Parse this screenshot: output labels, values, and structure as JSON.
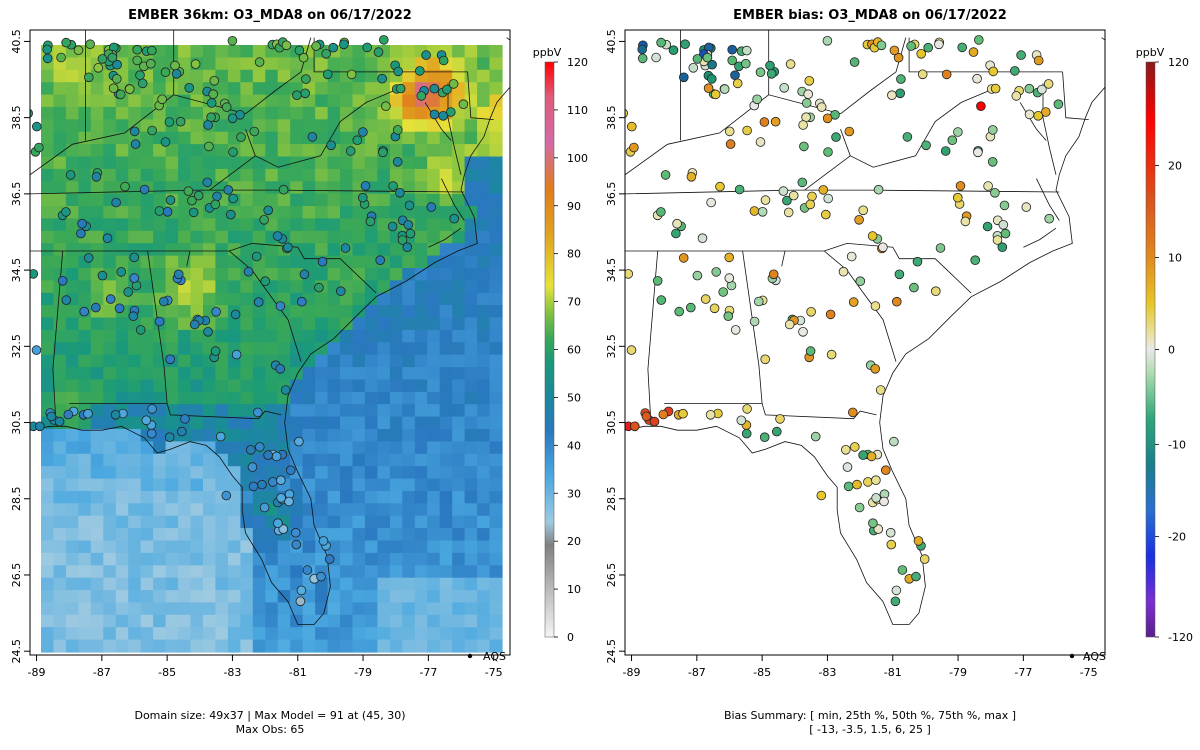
{
  "left_panel": {
    "title": "EMBER 36km: O3_MDA8 on 06/17/2022",
    "footer_line1": "Domain size: 49x37 | Max Model = 91 at (45, 30)",
    "footer_line2": "Max Obs: 65",
    "legend_label": "AQS",
    "colorbar": {
      "unit": "ppbV",
      "ticks": [
        "0",
        "10",
        "20",
        "30",
        "40",
        "50",
        "60",
        "70",
        "80",
        "90",
        "100",
        "110",
        "120"
      ],
      "range": [
        0,
        120
      ],
      "stops": [
        "#f5f5f5",
        "#bdbdbd",
        "#7f7f7f",
        "#9ecae1",
        "#41a6e6",
        "#2a7fc0",
        "#1a9a82",
        "#3aa857",
        "#7fc241",
        "#e8e03c",
        "#e0a21f",
        "#e27d1e",
        "#d96aa0",
        "#c86aaa",
        "#ff0000"
      ]
    }
  },
  "right_panel": {
    "title": "EMBER bias: O3_MDA8 on 06/17/2022",
    "footer_line1": "Bias Summary: [ min, 25th %, 50th %, 75th %, max ]",
    "footer_line2": "[ -13,   -3.5,   1.5,   6,   25 ]",
    "legend_label": "AQS",
    "colorbar": {
      "unit": "ppbV",
      "ticks": [
        "120",
        "20",
        "10",
        "0",
        "-10",
        "-20",
        "-120"
      ],
      "range": [
        -120,
        120
      ],
      "stops": [
        "#8b1a1a",
        "#ff0000",
        "#d9541e",
        "#e08a1e",
        "#e6c72a",
        "#e6e08a",
        "#e8e8e8",
        "#9fd49a",
        "#2fa67a",
        "#1a8a6e",
        "#2a6fd0",
        "#1a2fe0",
        "#6a2fd0",
        "#5a1f8a"
      ]
    }
  },
  "axes": {
    "x_ticks": [
      "-89",
      "-87",
      "-85",
      "-83",
      "-81",
      "-79",
      "-77",
      "-75"
    ],
    "y_ticks": [
      "40.5",
      "38.5",
      "36.5",
      "34.5",
      "32.5",
      "30.5",
      "28.5",
      "26.5",
      "24.5"
    ]
  },
  "summary": {
    "domain_size": "49x37",
    "max_model": 91,
    "max_model_location": "(45, 30)",
    "max_obs": 65,
    "bias_min": -13,
    "bias_p25": -3.5,
    "bias_median": 1.5,
    "bias_p75": 6,
    "bias_max": 25
  }
}
